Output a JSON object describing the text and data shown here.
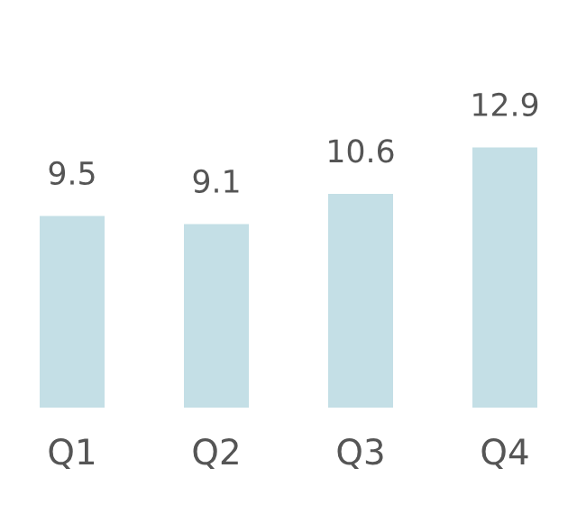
{
  "chart_data": {
    "type": "bar",
    "categories": [
      "Q1",
      "Q2",
      "Q3",
      "Q4"
    ],
    "values": [
      9.5,
      9.1,
      10.6,
      12.9
    ],
    "color": "#c4dfe6",
    "data_labels": true,
    "grid": false,
    "legend": false
  }
}
